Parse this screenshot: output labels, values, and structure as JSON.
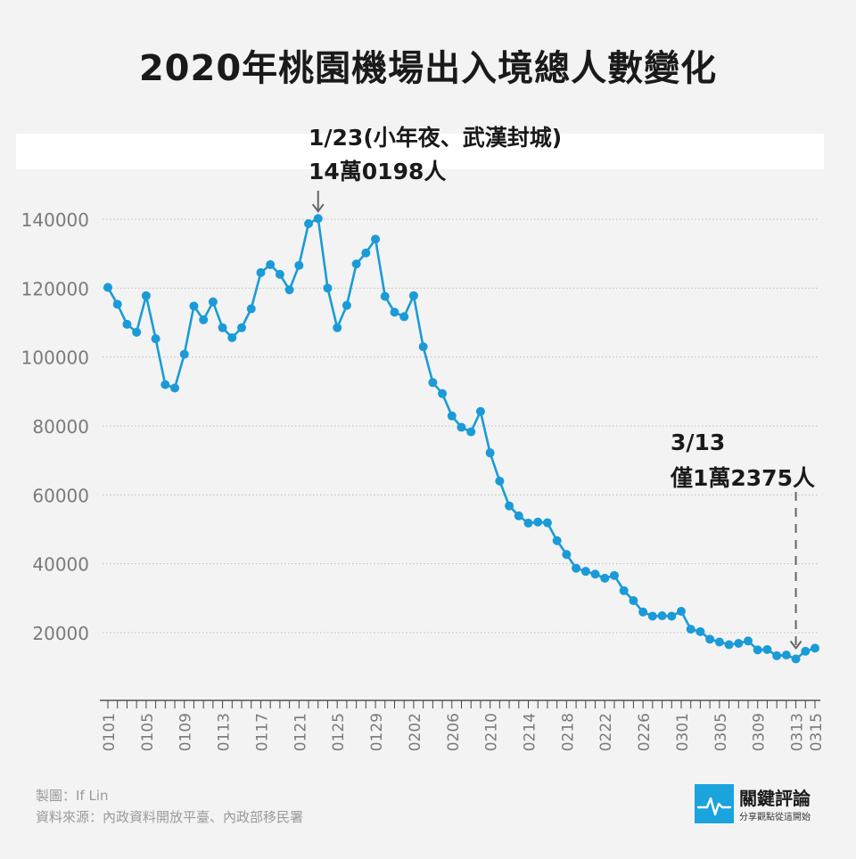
{
  "title": "2020年桃園機場出入境總人數變化",
  "annotations": [
    {
      "lines": [
        "1/23(小年夜、武漢封城)",
        "14萬0198人"
      ],
      "date": "0123",
      "value": 140198
    },
    {
      "lines": [
        "3/13",
        "僅1萬2375人"
      ],
      "date": "0313",
      "value": 12375
    }
  ],
  "credits": {
    "maker": "製圖：If Lin",
    "source": "資料來源：內政資料開放平臺、內政部移民署"
  },
  "logo": {
    "name": "關鍵評論",
    "slogan": "分享觀點從這開始",
    "icon": "pulse-line-icon"
  },
  "colors": {
    "line": "#1a9bd7",
    "grid": "#bdbdbd",
    "background": "#f3f3f3"
  },
  "chart_data": {
    "type": "line",
    "title": "2020年桃園機場出入境總人數變化",
    "ylim": [
      0,
      140000
    ],
    "yticks": [
      20000,
      40000,
      60000,
      80000,
      100000,
      120000,
      140000
    ],
    "grid": true,
    "x_tick_labels": [
      "0101",
      "0105",
      "0109",
      "0113",
      "0117",
      "0121",
      "0125",
      "0129",
      "0202",
      "0206",
      "0210",
      "0214",
      "0218",
      "0222",
      "0226",
      "0301",
      "0305",
      "0309",
      "0313",
      "0315"
    ],
    "x": [
      "0101",
      "0102",
      "0103",
      "0104",
      "0105",
      "0106",
      "0107",
      "0108",
      "0109",
      "0110",
      "0111",
      "0112",
      "0113",
      "0114",
      "0115",
      "0116",
      "0117",
      "0118",
      "0119",
      "0120",
      "0121",
      "0122",
      "0123",
      "0124",
      "0125",
      "0126",
      "0127",
      "0128",
      "0129",
      "0130",
      "0131",
      "0201",
      "0202",
      "0203",
      "0204",
      "0205",
      "0206",
      "0207",
      "0208",
      "0209",
      "0210",
      "0211",
      "0212",
      "0213",
      "0214",
      "0215",
      "0216",
      "0217",
      "0218",
      "0219",
      "0220",
      "0221",
      "0222",
      "0223",
      "0224",
      "0225",
      "0226",
      "0227",
      "0228",
      "0229",
      "0301",
      "0302",
      "0303",
      "0304",
      "0305",
      "0306",
      "0307",
      "0308",
      "0309",
      "0310",
      "0311",
      "0312",
      "0313",
      "0314",
      "0315"
    ],
    "series": [
      {
        "values": [
          120200,
          115300,
          109500,
          107200,
          117800,
          105300,
          92000,
          91000,
          100800,
          114800,
          110800,
          116000,
          108500,
          105600,
          108500,
          114000,
          124500,
          126800,
          124000,
          119500,
          126600,
          138700,
          140198,
          120000,
          108500,
          115000,
          127000,
          130200,
          134200,
          117600,
          113000,
          111700,
          117800,
          103000,
          92600,
          89400,
          82900,
          79600,
          78300,
          84200,
          72200,
          64000,
          56800,
          53900,
          51800,
          52100,
          51900,
          46700,
          42700,
          38700,
          37800,
          37000,
          35800,
          36600,
          32200,
          29300,
          26000,
          24800,
          24900,
          24800,
          26200,
          21000,
          20300,
          18100,
          17300,
          16500,
          16900,
          17600,
          15000,
          15100,
          13300,
          13500,
          12375,
          14600,
          15500
        ]
      }
    ]
  }
}
